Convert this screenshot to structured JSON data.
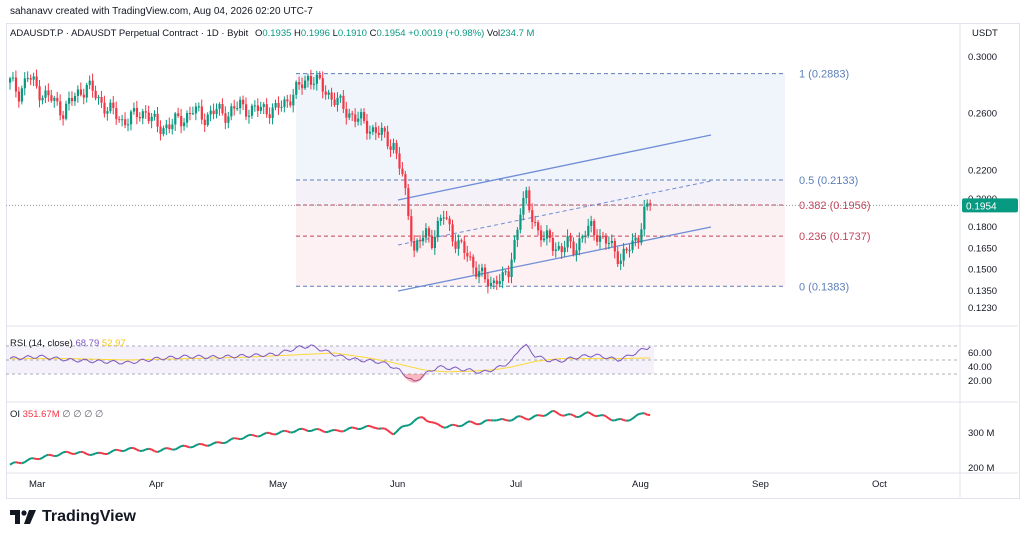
{
  "header": {
    "attribution": "sahanavv created with TradingView.com, Aug 04, 2026 02:20 UTC-7",
    "symbol": "ADAUSDT.P · ADAUSDT Perpetual Contract · 1D · Bybit",
    "o_key": "O",
    "o_val": "0.1935",
    "h_key": "H",
    "h_val": "0.1996",
    "l_key": "L",
    "l_val": "0.1910",
    "c_key": "C",
    "c_val": "0.1954",
    "change": "+0.0019 (+0.98%)",
    "vol_key": "Vol",
    "vol_val": "234.7 M"
  },
  "price_axis": {
    "currency": "USDT",
    "ticks": [
      "0.3000",
      "0.2600",
      "0.2200",
      "0.2000",
      "0.1800",
      "0.1650",
      "0.1500",
      "0.1350",
      "0.1230"
    ],
    "last_price": "0.1954"
  },
  "fib_labels": {
    "l1": "1 (0.2883)",
    "l05": "0.5 (0.2133)",
    "l0382": "0.382 (0.1956)",
    "l0236": "0.236 (0.1737)",
    "l0": "0 (0.1383)"
  },
  "rsi": {
    "label": "RSI (14, close)",
    "value": "68.79",
    "ma_value": "52.97",
    "ticks": [
      "60.00",
      "40.00",
      "20.00"
    ]
  },
  "oi": {
    "label": "OI",
    "value": "351.67M",
    "extras": "∅ ∅ ∅ ∅",
    "ticks": [
      "300 M",
      "200 M"
    ]
  },
  "time_axis": {
    "months": [
      "Mar",
      "Apr",
      "May",
      "Jun",
      "Jul",
      "Aug",
      "Sep",
      "Oct"
    ]
  },
  "brand": {
    "name": "TradingView"
  },
  "colors": {
    "up": "#089981",
    "down": "#f23645",
    "fib_blue": "#5b7fb9",
    "fib_red": "#c2455a",
    "channel": "#6f8ed6",
    "rsi": "#7e57c2",
    "rsi_ma": "#fdd835",
    "price_tag": "#089981"
  },
  "chart_data": {
    "type": "candlestick",
    "ylim": [
      0.12,
      0.315
    ],
    "period": "1D",
    "fib_levels": [
      {
        "ratio": 1,
        "price": 0.2883
      },
      {
        "ratio": 0.5,
        "price": 0.2133
      },
      {
        "ratio": 0.382,
        "price": 0.1956
      },
      {
        "ratio": 0.236,
        "price": 0.1737
      },
      {
        "ratio": 0,
        "price": 0.1383
      }
    ],
    "close_anchors": [
      [
        0,
        0.282
      ],
      [
        3,
        0.275
      ],
      [
        6,
        0.286
      ],
      [
        10,
        0.276
      ],
      [
        14,
        0.27
      ],
      [
        18,
        0.262
      ],
      [
        22,
        0.272
      ],
      [
        26,
        0.28
      ],
      [
        30,
        0.27
      ],
      [
        34,
        0.262
      ],
      [
        38,
        0.255
      ],
      [
        42,
        0.258
      ],
      [
        46,
        0.262
      ],
      [
        50,
        0.25
      ],
      [
        54,
        0.252
      ],
      [
        58,
        0.256
      ],
      [
        62,
        0.262
      ],
      [
        66,
        0.258
      ],
      [
        70,
        0.262
      ],
      [
        74,
        0.26
      ],
      [
        78,
        0.266
      ],
      [
        82,
        0.262
      ],
      [
        86,
        0.264
      ],
      [
        90,
        0.262
      ],
      [
        94,
        0.27
      ],
      [
        98,
        0.278
      ],
      [
        101,
        0.286
      ],
      [
        103,
        0.284
      ],
      [
        106,
        0.278
      ],
      [
        110,
        0.27
      ],
      [
        114,
        0.262
      ],
      [
        118,
        0.256
      ],
      [
        122,
        0.25
      ],
      [
        126,
        0.245
      ],
      [
        130,
        0.238
      ],
      [
        133,
        0.215
      ],
      [
        135,
        0.19
      ],
      [
        137,
        0.164
      ],
      [
        139,
        0.17
      ],
      [
        141,
        0.175
      ],
      [
        143,
        0.172
      ],
      [
        145,
        0.18
      ],
      [
        147,
        0.188
      ],
      [
        149,
        0.18
      ],
      [
        151,
        0.17
      ],
      [
        153,
        0.165
      ],
      [
        155,
        0.16
      ],
      [
        157,
        0.154
      ],
      [
        159,
        0.148
      ],
      [
        161,
        0.142
      ],
      [
        163,
        0.14
      ],
      [
        165,
        0.145
      ],
      [
        167,
        0.142
      ],
      [
        169,
        0.148
      ],
      [
        171,
        0.17
      ],
      [
        173,
        0.192
      ],
      [
        175,
        0.2
      ],
      [
        177,
        0.188
      ],
      [
        179,
        0.178
      ],
      [
        181,
        0.17
      ],
      [
        183,
        0.172
      ],
      [
        185,
        0.166
      ],
      [
        187,
        0.164
      ],
      [
        189,
        0.168
      ],
      [
        191,
        0.166
      ],
      [
        193,
        0.17
      ],
      [
        195,
        0.175
      ],
      [
        197,
        0.18
      ],
      [
        199,
        0.176
      ],
      [
        201,
        0.17
      ],
      [
        203,
        0.168
      ],
      [
        205,
        0.164
      ],
      [
        207,
        0.158
      ],
      [
        209,
        0.162
      ],
      [
        211,
        0.168
      ],
      [
        213,
        0.175
      ],
      [
        215,
        0.19
      ],
      [
        217,
        0.1954
      ]
    ],
    "rsi_anchors": [
      [
        0,
        52
      ],
      [
        10,
        55
      ],
      [
        20,
        50
      ],
      [
        30,
        48
      ],
      [
        40,
        46
      ],
      [
        50,
        52
      ],
      [
        60,
        55
      ],
      [
        70,
        54
      ],
      [
        80,
        56
      ],
      [
        90,
        58
      ],
      [
        98,
        68
      ],
      [
        102,
        70
      ],
      [
        106,
        64
      ],
      [
        112,
        55
      ],
      [
        118,
        50
      ],
      [
        124,
        48
      ],
      [
        128,
        44
      ],
      [
        132,
        35
      ],
      [
        135,
        25
      ],
      [
        137,
        18
      ],
      [
        140,
        28
      ],
      [
        145,
        40
      ],
      [
        150,
        38
      ],
      [
        155,
        36
      ],
      [
        160,
        32
      ],
      [
        165,
        38
      ],
      [
        170,
        48
      ],
      [
        173,
        68
      ],
      [
        175,
        70
      ],
      [
        178,
        56
      ],
      [
        182,
        50
      ],
      [
        186,
        48
      ],
      [
        190,
        52
      ],
      [
        194,
        55
      ],
      [
        198,
        57
      ],
      [
        202,
        54
      ],
      [
        206,
        50
      ],
      [
        210,
        56
      ],
      [
        214,
        64
      ],
      [
        217,
        68.79
      ]
    ],
    "rsi_ma_anchors": [
      [
        0,
        52
      ],
      [
        20,
        52
      ],
      [
        40,
        50
      ],
      [
        60,
        52
      ],
      [
        80,
        54
      ],
      [
        100,
        58
      ],
      [
        110,
        60
      ],
      [
        120,
        54
      ],
      [
        128,
        48
      ],
      [
        134,
        42
      ],
      [
        140,
        36
      ],
      [
        148,
        33
      ],
      [
        156,
        34
      ],
      [
        164,
        36
      ],
      [
        170,
        40
      ],
      [
        178,
        48
      ],
      [
        186,
        52
      ],
      [
        196,
        52
      ],
      [
        206,
        52
      ],
      [
        217,
        52.97
      ]
    ],
    "oi_anchors": [
      [
        0,
        210
      ],
      [
        10,
        230
      ],
      [
        20,
        245
      ],
      [
        30,
        240
      ],
      [
        40,
        255
      ],
      [
        50,
        250
      ],
      [
        60,
        262
      ],
      [
        70,
        270
      ],
      [
        80,
        290
      ],
      [
        90,
        300
      ],
      [
        100,
        310
      ],
      [
        110,
        305
      ],
      [
        118,
        315
      ],
      [
        124,
        318
      ],
      [
        130,
        300
      ],
      [
        134,
        320
      ],
      [
        137,
        335
      ],
      [
        140,
        345
      ],
      [
        144,
        325
      ],
      [
        148,
        318
      ],
      [
        152,
        322
      ],
      [
        156,
        330
      ],
      [
        160,
        328
      ],
      [
        164,
        340
      ],
      [
        168,
        335
      ],
      [
        172,
        345
      ],
      [
        176,
        342
      ],
      [
        180,
        350
      ],
      [
        184,
        360
      ],
      [
        188,
        352
      ],
      [
        192,
        348
      ],
      [
        196,
        356
      ],
      [
        200,
        350
      ],
      [
        204,
        340
      ],
      [
        208,
        335
      ],
      [
        212,
        345
      ],
      [
        215,
        360
      ],
      [
        217,
        351.67
      ]
    ]
  }
}
